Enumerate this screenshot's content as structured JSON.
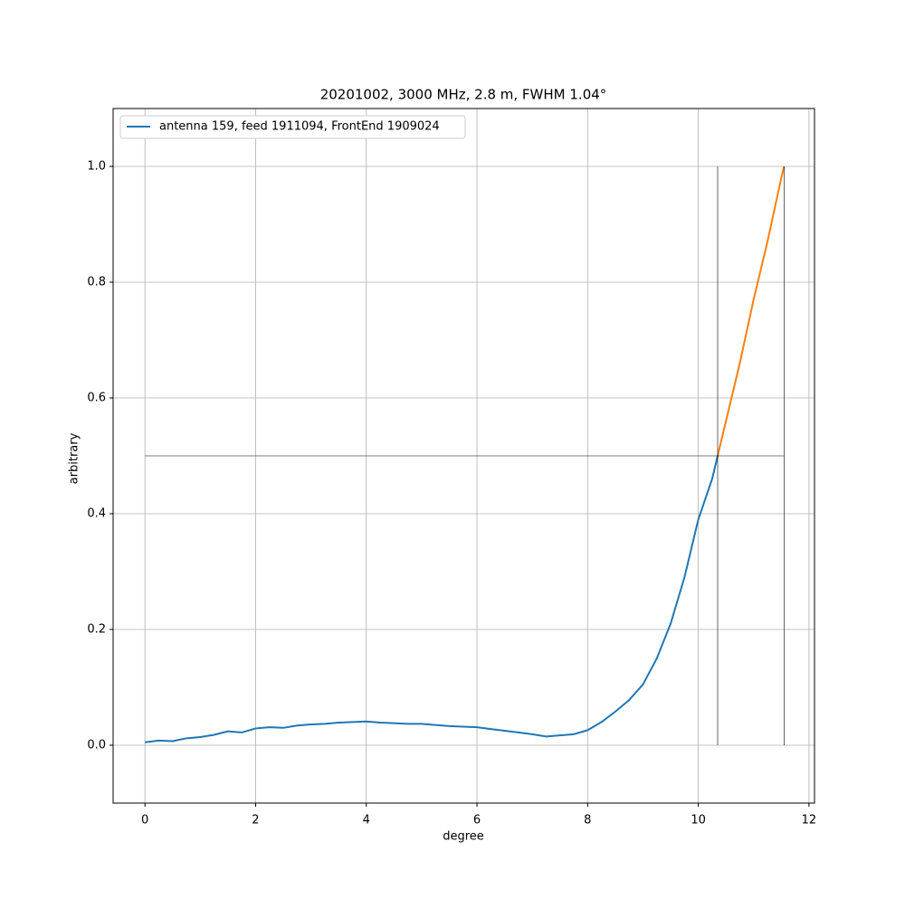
{
  "chart_data": {
    "type": "line",
    "title": "20201002, 3000 MHz, 2.8 m, FWHM 1.04°",
    "xlabel": "degree",
    "ylabel": "arbitrary",
    "xlim": [
      -0.575,
      12.1
    ],
    "ylim": [
      -0.1,
      1.1
    ],
    "xticks": [
      0,
      2,
      4,
      6,
      8,
      10,
      12
    ],
    "yticks": [
      {
        "value": 0,
        "label": "0.0"
      },
      0.2,
      0.4,
      0.6,
      0.8,
      {
        "value": 1,
        "label": "1.0"
      }
    ],
    "grid": true,
    "legend": "upper left",
    "series": [
      {
        "name": "antenna 159, feed 1911094, FrontEnd 1909024",
        "color": "#1f77b4",
        "x": [
          0,
          0.25,
          0.5,
          0.75,
          1,
          1.25,
          1.5,
          1.75,
          2,
          2.25,
          2.5,
          2.75,
          3,
          3.25,
          3.5,
          3.75,
          4,
          4.25,
          4.5,
          4.75,
          5,
          5.25,
          5.5,
          5.75,
          6,
          6.25,
          6.5,
          6.75,
          7,
          7.25,
          7.5,
          7.75,
          8,
          8.25,
          8.5,
          8.75,
          9,
          9.25,
          9.5,
          9.75,
          10,
          10.25,
          10.35
        ],
        "values": [
          0.005,
          0.008,
          0.007,
          0.012,
          0.014,
          0.018,
          0.024,
          0.022,
          0.029,
          0.031,
          0.03,
          0.034,
          0.036,
          0.037,
          0.039,
          0.04,
          0.041,
          0.039,
          0.038,
          0.037,
          0.037,
          0.035,
          0.033,
          0.032,
          0.031,
          0.028,
          0.025,
          0.022,
          0.019,
          0.015,
          0.017,
          0.019,
          0.026,
          0.04,
          0.058,
          0.078,
          0.105,
          0.15,
          0.21,
          0.29,
          0.39,
          0.46,
          0.5
        ]
      },
      {
        "color": "#ff7f0e",
        "x": [
          10.35,
          10.5,
          10.75,
          11,
          11.25,
          11.5,
          11.55
        ],
        "values": [
          0.5,
          0.56,
          0.66,
          0.77,
          0.87,
          0.98,
          1.0
        ]
      }
    ],
    "reference_lines": [
      {
        "color": "#000000",
        "x": [
          0,
          11.55
        ],
        "values": [
          0.5,
          0.5
        ]
      },
      {
        "color": "#000000",
        "x": [
          10.35,
          10.35
        ],
        "values": [
          0,
          1
        ]
      },
      {
        "color": "#000000",
        "x": [
          11.55,
          11.55
        ],
        "values": [
          0,
          1
        ]
      }
    ]
  }
}
